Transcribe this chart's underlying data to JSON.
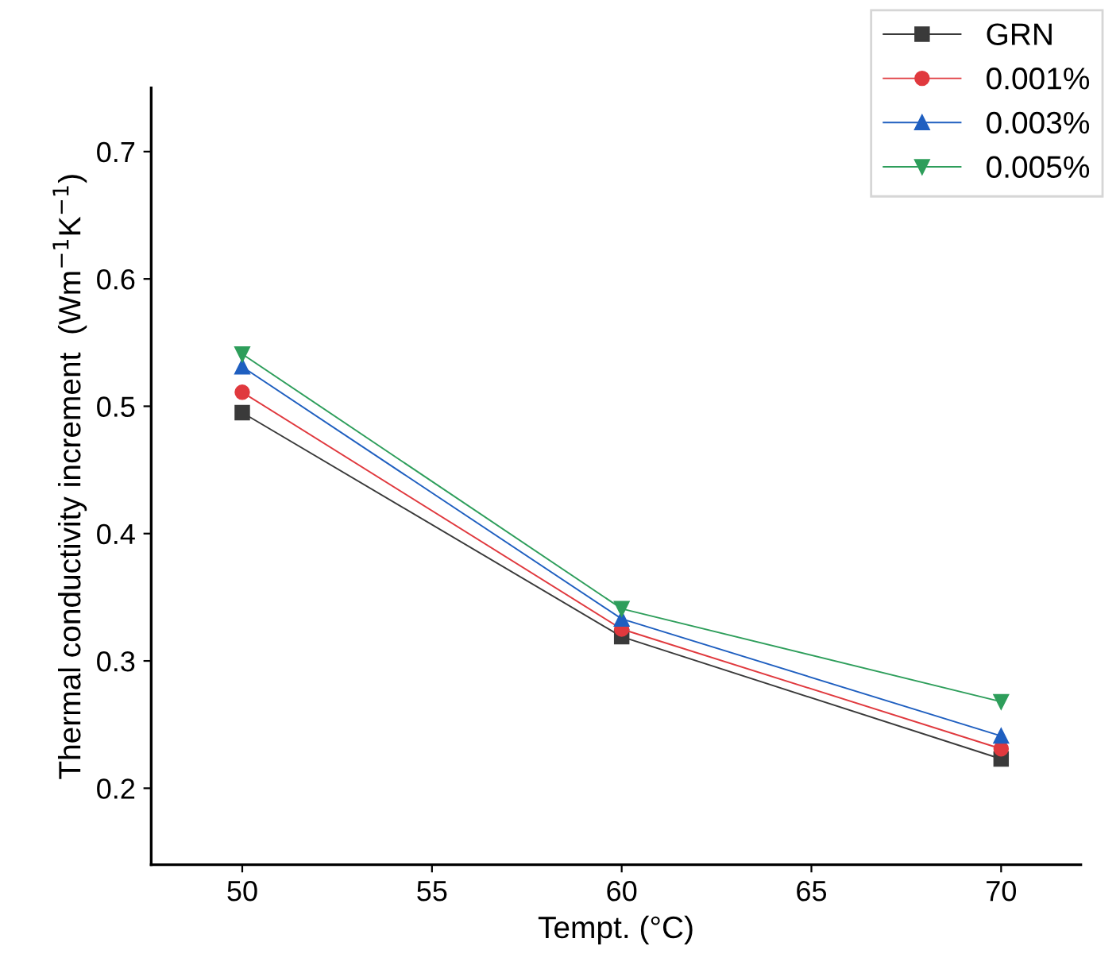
{
  "chart_data": {
    "type": "line",
    "xlabel": "Tempt. (°C)",
    "ylabel": "Thermal conductivity increment  (Wm$^{−1}$K$^{−1}$)",
    "x": [
      50,
      60,
      70
    ],
    "series": [
      {
        "name": "GRN",
        "color": "#3a3a3a",
        "marker": "square",
        "values": [
          0.495,
          0.319,
          0.223
        ]
      },
      {
        "name": "0.001%",
        "color": "#e0393e",
        "marker": "circle",
        "values": [
          0.511,
          0.325,
          0.231
        ]
      },
      {
        "name": "0.003%",
        "color": "#1f5fc0",
        "marker": "triangle",
        "values": [
          0.531,
          0.333,
          0.241
        ]
      },
      {
        "name": "0.005%",
        "color": "#2e9e5b",
        "marker": "triangle_down",
        "values": [
          0.541,
          0.341,
          0.268
        ]
      }
    ],
    "xlim": [
      47.6,
      72.1
    ],
    "xticks": [
      50,
      55,
      60,
      65,
      70
    ],
    "ylim": [
      0.14,
      0.75
    ],
    "yticks": [
      0.2,
      0.3,
      0.4,
      0.5,
      0.6,
      0.7
    ],
    "grid": false,
    "legend": "top right",
    "line_style": "solid"
  }
}
